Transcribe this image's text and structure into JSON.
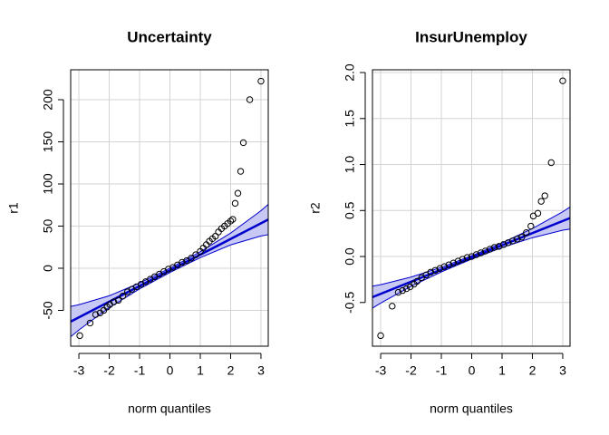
{
  "chart_data": [
    {
      "type": "qq",
      "title": "Uncertainty",
      "x_label": "norm quantiles",
      "y_label": "r1",
      "xlim": [
        -3.27,
        3.24
      ],
      "ylim": [
        -92.5,
        235.5
      ],
      "xticks": [
        -3,
        -2,
        -1,
        0,
        1,
        2,
        3
      ],
      "yticks": [
        -50,
        0,
        50,
        100,
        150,
        200
      ],
      "grid": true,
      "point_color": "#000000",
      "line_color": "#0000cd",
      "band_color": "#c8c8f5",
      "x": [
        -2.97,
        -2.63,
        -2.45,
        -2.3,
        -2.18,
        -2.07,
        -1.98,
        -1.85,
        -1.7,
        -1.55,
        -1.4,
        -1.25,
        -1.1,
        -0.95,
        -0.8,
        -0.65,
        -0.5,
        -0.35,
        -0.2,
        -0.05,
        0.1,
        0.25,
        0.4,
        0.55,
        0.7,
        0.85,
        1.0,
        1.1,
        1.2,
        1.3,
        1.4,
        1.5,
        1.6,
        1.7,
        1.8,
        1.9,
        2.0,
        2.07,
        2.15,
        2.24,
        2.33,
        2.42,
        2.63,
        3.0
      ],
      "values": [
        -80,
        -65,
        -55,
        -53,
        -50,
        -46,
        -43,
        -40,
        -38,
        -33,
        -28,
        -25,
        -22,
        -19,
        -16,
        -13,
        -10,
        -7,
        -4,
        -1,
        1,
        4,
        7,
        9,
        12,
        16,
        20,
        24,
        28,
        32,
        35,
        38,
        43,
        47,
        50,
        53,
        56,
        58,
        77,
        89,
        115,
        149,
        200,
        222
      ],
      "reference_line": {
        "x": [
          -3.27,
          3.24
        ],
        "values": [
          -63.3,
          57.8
        ]
      },
      "band": {
        "x": [
          -3.27,
          -3,
          -2,
          -1,
          0,
          1,
          2,
          3,
          3.24
        ],
        "upper": [
          -45.3,
          -43.3,
          -32.7,
          -17.6,
          0,
          19.6,
          41.7,
          68.3,
          75.8
        ],
        "lower": [
          -81.3,
          -73.3,
          -46.7,
          -24.6,
          -5,
          12.6,
          27.7,
          38.3,
          39.8
        ]
      }
    },
    {
      "type": "qq",
      "title": "InsurUnemploy",
      "x_label": "norm quantiles",
      "y_label": "r2",
      "xlim": [
        -3.27,
        3.24
      ],
      "ylim": [
        -0.975,
        2.03
      ],
      "xticks": [
        -3,
        -2,
        -1,
        0,
        1,
        2,
        3
      ],
      "yticks": [
        -0.5,
        {
          "value": 0,
          "label": "0.0"
        },
        0.5,
        {
          "value": 1,
          "label": "1.0"
        },
        1.5,
        {
          "value": 2,
          "label": "2.0"
        }
      ],
      "grid": true,
      "point_color": "#000000",
      "line_color": "#0000cd",
      "band_color": "#c8c8f5",
      "x": [
        -3,
        -2.62,
        -2.42,
        -2.28,
        -2.15,
        -2.03,
        -1.9,
        -1.8,
        -1.65,
        -1.5,
        -1.35,
        -1.2,
        -1.05,
        -0.9,
        -0.75,
        -0.6,
        -0.45,
        -0.3,
        -0.15,
        0,
        0.15,
        0.3,
        0.45,
        0.6,
        0.75,
        0.9,
        1.05,
        1.2,
        1.35,
        1.5,
        1.65,
        1.8,
        1.95,
        2.03,
        2.18,
        2.29,
        2.41,
        2.62,
        3.0
      ],
      "values": [
        -0.86,
        -0.54,
        -0.39,
        -0.37,
        -0.35,
        -0.33,
        -0.3,
        -0.27,
        -0.23,
        -0.2,
        -0.17,
        -0.15,
        -0.13,
        -0.11,
        -0.09,
        -0.07,
        -0.05,
        -0.03,
        -0.01,
        0.0,
        0.02,
        0.04,
        0.06,
        0.08,
        0.1,
        0.11,
        0.13,
        0.15,
        0.17,
        0.19,
        0.21,
        0.26,
        0.33,
        0.44,
        0.47,
        0.6,
        0.66,
        1.02,
        1.91
      ],
      "reference_line": {
        "x": [
          -3.27,
          3.24
        ],
        "values": [
          -0.442,
          0.418
        ]
      },
      "band": {
        "x": [
          -3.27,
          -3,
          -2,
          -1,
          0,
          1,
          2,
          3,
          3.24
        ],
        "upper": [
          -0.322,
          -0.306,
          -0.224,
          -0.117,
          0.008,
          0.147,
          0.304,
          0.486,
          0.538
        ],
        "lower": [
          -0.562,
          -0.506,
          -0.324,
          -0.167,
          -0.028,
          0.097,
          0.204,
          0.286,
          0.298
        ]
      }
    }
  ]
}
